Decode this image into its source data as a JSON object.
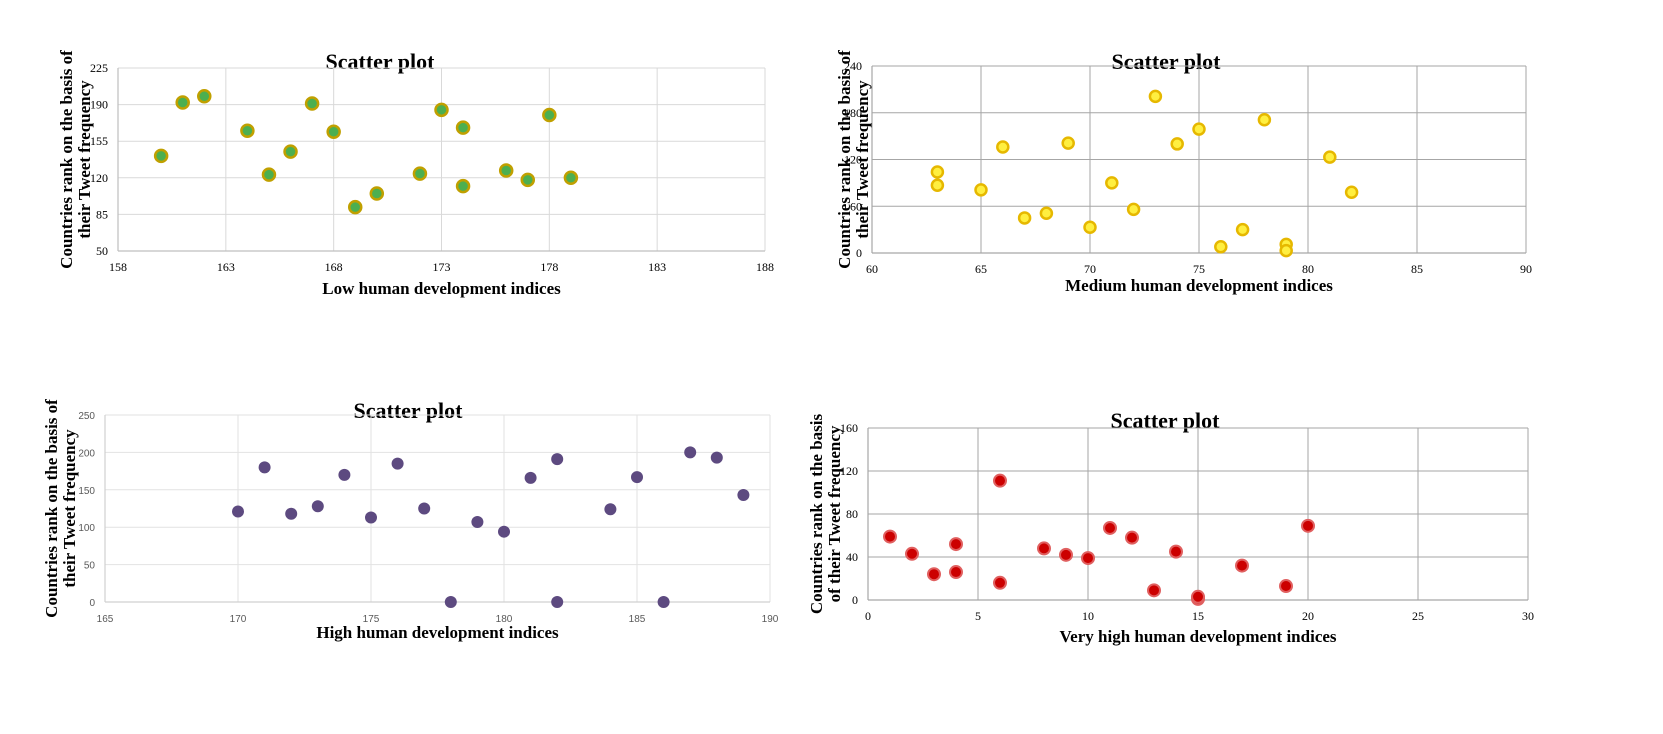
{
  "chart_data": [
    {
      "type": "scatter",
      "title": "Scatter plot",
      "xlabel": "Low human development indices",
      "ylabel": "Countries rank on the basis of their Tweet frequency",
      "ylabel_lines": [
        "Countries rank on the basis of",
        "their Tweet frequency"
      ],
      "xlim": [
        158,
        188
      ],
      "ylim": [
        50,
        225
      ],
      "xticks": [
        158,
        163,
        168,
        173,
        178,
        183,
        188
      ],
      "yticks": [
        50,
        85,
        120,
        155,
        190,
        225
      ],
      "grid": true,
      "marker_fill": "#4caf50",
      "marker_stroke": "#c0a000",
      "series": [
        {
          "name": "Low",
          "x": [
            160,
            161,
            162,
            164,
            165,
            166,
            167,
            168,
            169,
            170,
            172,
            173,
            174,
            174,
            176,
            177,
            178,
            179
          ],
          "y": [
            141,
            192,
            198,
            165,
            123,
            145,
            191,
            164,
            92,
            105,
            124,
            185,
            168,
            112,
            127,
            118,
            180,
            120
          ]
        }
      ]
    },
    {
      "type": "scatter",
      "title": "Scatter plot",
      "xlabel": "Medium human development indices",
      "ylabel": "Countries rank on the basis of their Tweet frequency",
      "ylabel_lines": [
        "Countries rank on the basis of",
        "their Tweet frequency"
      ],
      "xlim": [
        60,
        90
      ],
      "ylim": [
        0,
        240
      ],
      "xticks": [
        60,
        65,
        70,
        75,
        80,
        85,
        90
      ],
      "yticks": [
        0,
        60,
        120,
        180,
        240
      ],
      "grid": true,
      "marker_fill": "#ffef40",
      "marker_stroke": "#e6b800",
      "series": [
        {
          "name": "Medium",
          "x": [
            63,
            63,
            65,
            66,
            67,
            68,
            69,
            70,
            71,
            72,
            73,
            74,
            75,
            76,
            77,
            78,
            79,
            79,
            81,
            82
          ],
          "y": [
            104,
            87,
            81,
            136,
            45,
            51,
            141,
            33,
            90,
            56,
            201,
            140,
            159,
            8,
            30,
            171,
            11,
            3,
            123,
            78
          ]
        }
      ]
    },
    {
      "type": "scatter",
      "title": "Scatter plot",
      "xlabel": "High human development indices",
      "ylabel": "Countries rank on the basis of their Tweet frequency",
      "ylabel_lines": [
        "Countries rank on the basis of",
        "their Tweet frequency"
      ],
      "xlim": [
        165,
        190
      ],
      "ylim": [
        0,
        250
      ],
      "xticks": [
        165,
        170,
        175,
        180,
        185,
        190
      ],
      "yticks": [
        0,
        50,
        100,
        150,
        200,
        250
      ],
      "grid": true,
      "marker_fill": "#5d4a80",
      "marker_stroke": "#5d4a80",
      "series": [
        {
          "name": "High",
          "x": [
            170,
            171,
            172,
            173,
            174,
            175,
            176,
            177,
            178,
            179,
            180,
            181,
            182,
            182,
            184,
            185,
            186,
            187,
            188,
            189
          ],
          "y": [
            121,
            180,
            118,
            128,
            170,
            113,
            185,
            125,
            0,
            107,
            94,
            166,
            191,
            0,
            124,
            167,
            0,
            200,
            193,
            143
          ]
        }
      ]
    },
    {
      "type": "scatter",
      "title": "Scatter plot",
      "xlabel": "Very high human development indices",
      "ylabel": "Countries rank on the basis of their Tweet frequency",
      "ylabel_lines": [
        "Countries rank on the basis",
        "of their Tweet frequency"
      ],
      "xlim": [
        0,
        30
      ],
      "ylim": [
        0,
        160
      ],
      "xticks": [
        0,
        5,
        10,
        15,
        20,
        25,
        30
      ],
      "yticks": [
        0,
        40,
        80,
        120,
        160
      ],
      "grid": true,
      "marker_fill": "#cc0000",
      "marker_stroke": "#e06060",
      "series": [
        {
          "name": "Very high",
          "x": [
            1,
            2,
            3,
            4,
            4,
            6,
            6,
            8,
            9,
            10,
            11,
            12,
            13,
            14,
            15,
            15,
            17,
            19,
            20
          ],
          "y": [
            59,
            43,
            24,
            52,
            26,
            111,
            16,
            48,
            42,
            39,
            67,
            58,
            9,
            45,
            1,
            3,
            32,
            13,
            69
          ]
        }
      ]
    }
  ]
}
